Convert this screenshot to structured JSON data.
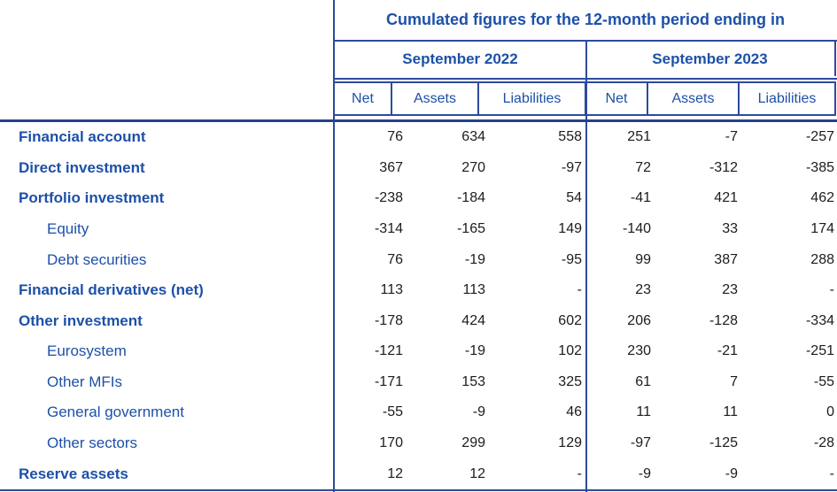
{
  "chart_data": {
    "type": "table",
    "title": "Cumulated figures for the 12-month period ending in",
    "column_groups": [
      "September 2022",
      "September 2023"
    ],
    "columns": [
      "Net",
      "Assets",
      "Liabilities",
      "Net",
      "Assets",
      "Liabilities"
    ],
    "rows": [
      {
        "label": "Financial account",
        "level": "main",
        "values": [
          76,
          634,
          558,
          251,
          -7,
          -257
        ]
      },
      {
        "label": "Direct investment",
        "level": "main",
        "values": [
          367,
          270,
          -97,
          72,
          -312,
          -385
        ]
      },
      {
        "label": "Portfolio investment",
        "level": "main",
        "values": [
          -238,
          -184,
          54,
          -41,
          421,
          462
        ]
      },
      {
        "label": "Equity",
        "level": "sub",
        "values": [
          -314,
          -165,
          149,
          -140,
          33,
          174
        ]
      },
      {
        "label": "Debt securities",
        "level": "sub",
        "values": [
          76,
          -19,
          -95,
          99,
          387,
          288
        ]
      },
      {
        "label": "Financial derivatives (net)",
        "level": "main",
        "values": [
          113,
          113,
          "-",
          23,
          23,
          "-"
        ]
      },
      {
        "label": "Other investment",
        "level": "main",
        "values": [
          -178,
          424,
          602,
          206,
          -128,
          -334
        ]
      },
      {
        "label": "Eurosystem",
        "level": "sub",
        "values": [
          -121,
          -19,
          102,
          230,
          -21,
          -251
        ]
      },
      {
        "label": "Other MFIs",
        "level": "sub",
        "values": [
          -171,
          153,
          325,
          61,
          7,
          -55
        ]
      },
      {
        "label": "General government",
        "level": "sub",
        "values": [
          -55,
          -9,
          46,
          11,
          11,
          0
        ]
      },
      {
        "label": "Other sectors",
        "level": "sub",
        "values": [
          170,
          299,
          129,
          -97,
          -125,
          -28
        ]
      },
      {
        "label": "Reserve assets",
        "level": "main",
        "values": [
          12,
          12,
          "-",
          -9,
          -9,
          "-"
        ]
      }
    ],
    "colors": {
      "header_text": "#1d50a8",
      "label_text": "#1d50a8",
      "value_text": "#1c1c1c",
      "border": "#2d4b9d"
    }
  }
}
